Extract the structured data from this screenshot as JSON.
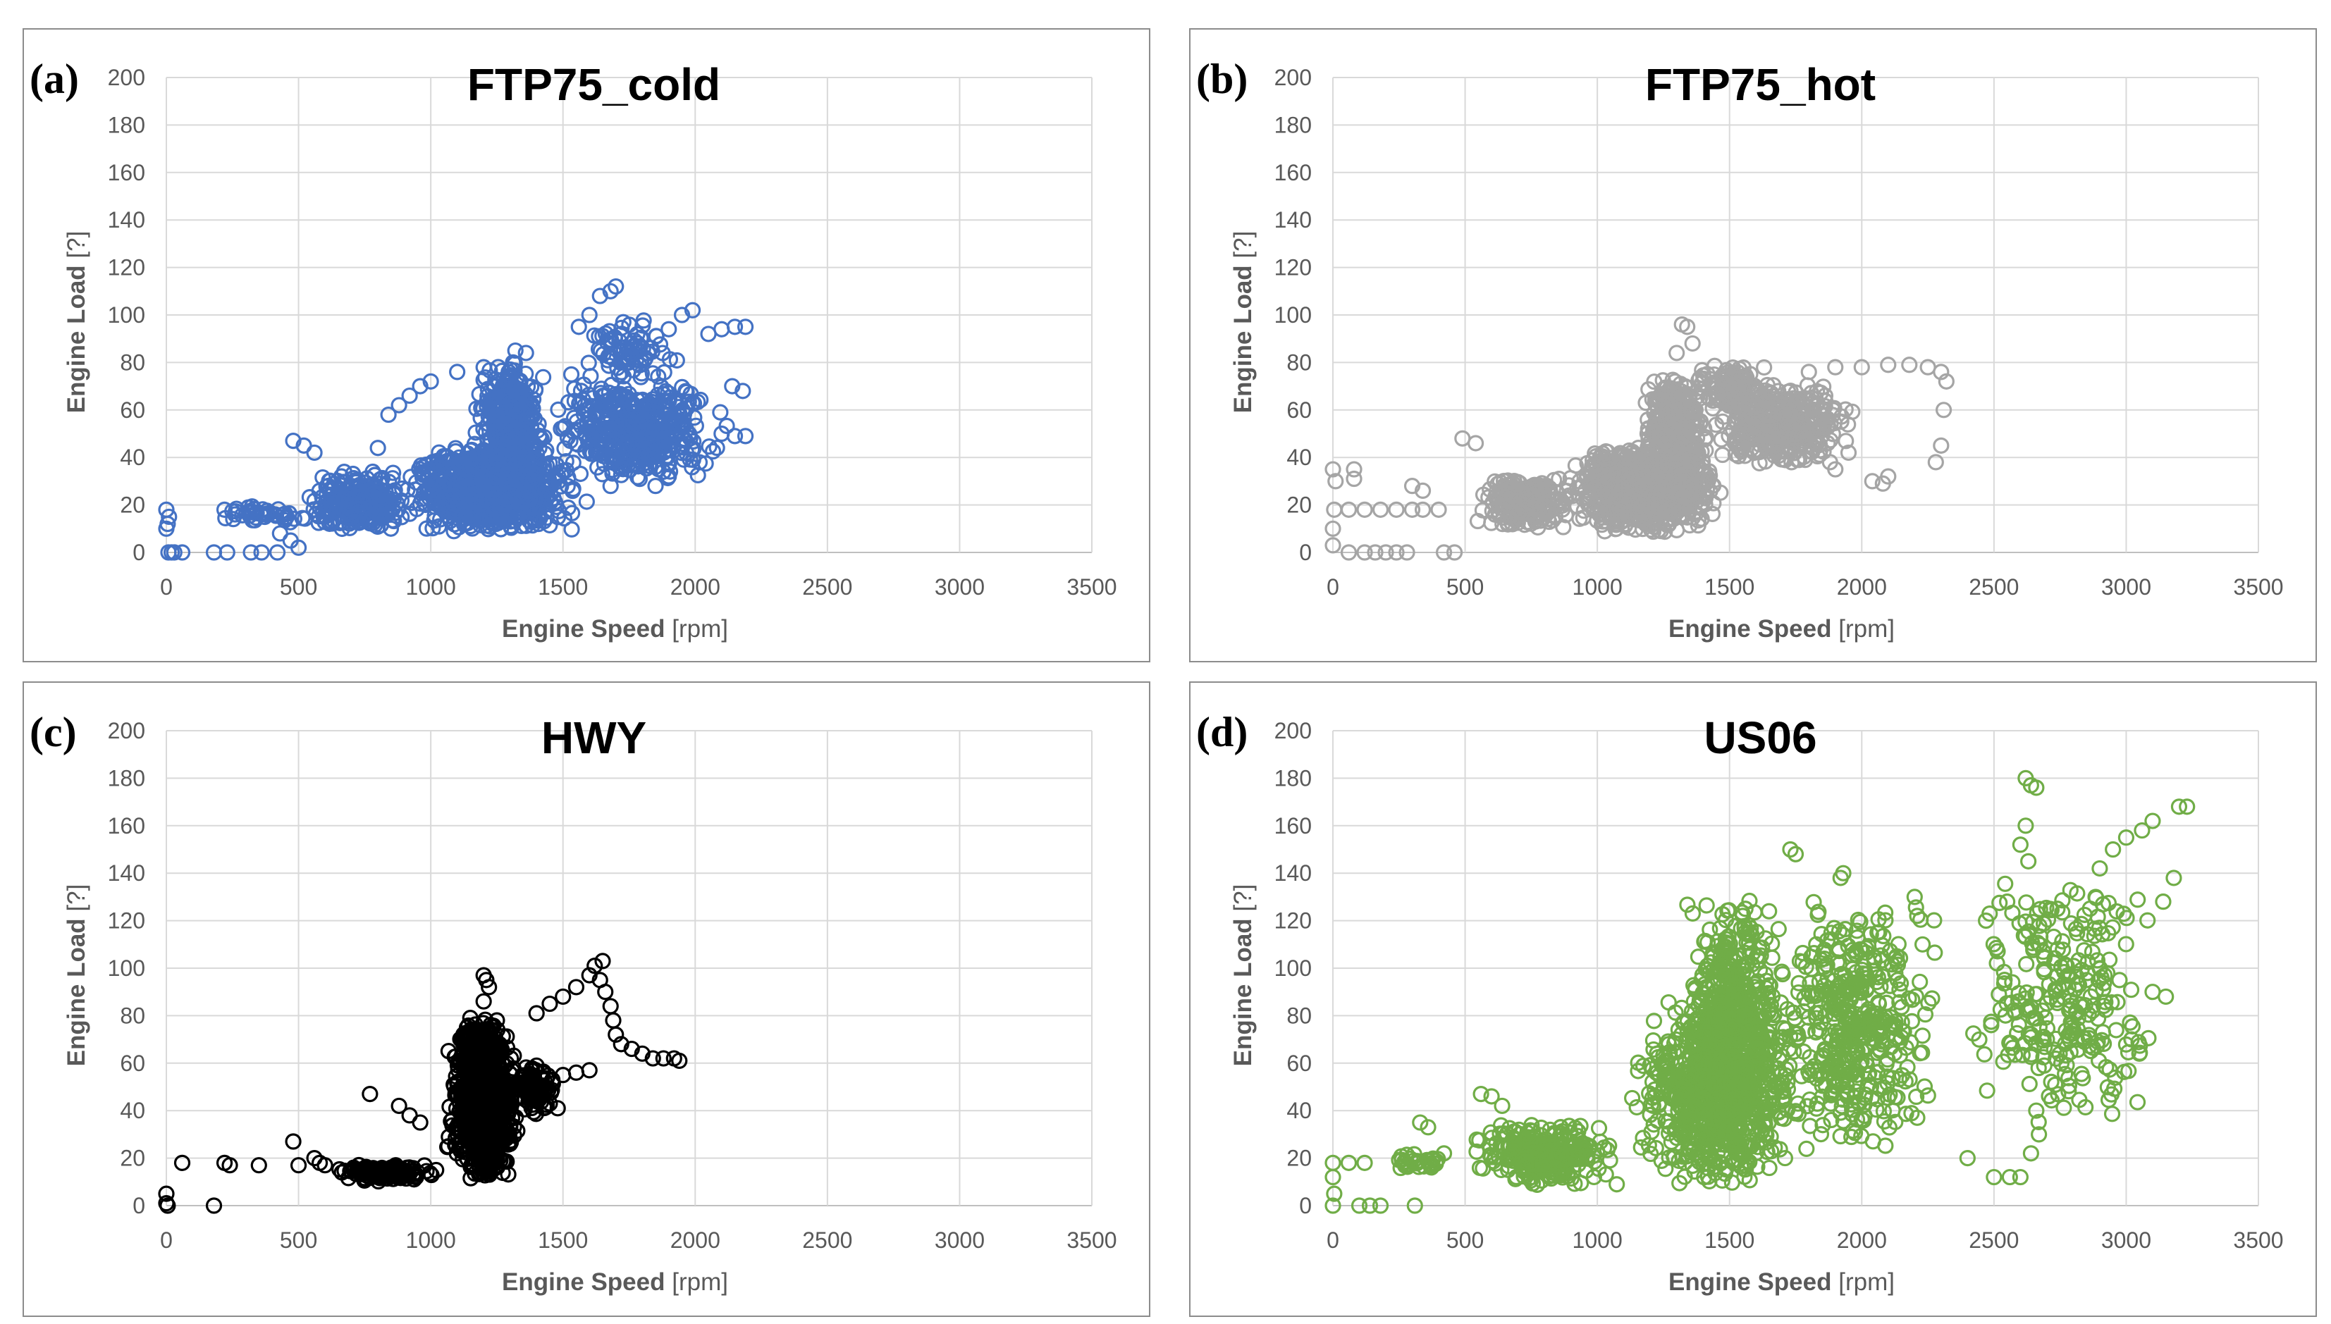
{
  "chart_data": [
    {
      "type": "scatter",
      "panel_label": "(a)",
      "title": "FTP75_cold",
      "xlabel": "Engine Speed",
      "xlabel_unit": "[rpm]",
      "ylabel": "Engine Load",
      "ylabel_unit": "[?]",
      "xlim": [
        0,
        3500
      ],
      "ylim": [
        0,
        200
      ],
      "xticks": [
        0,
        500,
        1000,
        1500,
        2000,
        2500,
        3000,
        3500
      ],
      "yticks": [
        0,
        20,
        40,
        60,
        80,
        100,
        120,
        140,
        160,
        180,
        200
      ],
      "grid": true,
      "color": "#4472c4",
      "clusters": [
        {
          "x": [
            850,
            1600
          ],
          "y": [
            8,
            45
          ],
          "n": 900
        },
        {
          "x": [
            1150,
            1450
          ],
          "y": [
            20,
            82
          ],
          "n": 500
        },
        {
          "x": [
            1400,
            2150
          ],
          "y": [
            30,
            72
          ],
          "n": 450
        },
        {
          "x": [
            500,
            950
          ],
          "y": [
            8,
            35
          ],
          "n": 250
        },
        {
          "x": [
            150,
            550
          ],
          "y": [
            12,
            20
          ],
          "n": 40
        },
        {
          "x": [
            1500,
            2000
          ],
          "y": [
            70,
            100
          ],
          "n": 80
        }
      ],
      "points": [
        {
          "x": 0,
          "y": 18
        },
        {
          "x": 10,
          "y": 15
        },
        {
          "x": 5,
          "y": 12
        },
        {
          "x": 0,
          "y": 10
        },
        {
          "x": 8,
          "y": 0
        },
        {
          "x": 30,
          "y": 0
        },
        {
          "x": 60,
          "y": 0
        },
        {
          "x": 20,
          "y": 0
        },
        {
          "x": 180,
          "y": 0
        },
        {
          "x": 230,
          "y": 0
        },
        {
          "x": 320,
          "y": 0
        },
        {
          "x": 360,
          "y": 0
        },
        {
          "x": 420,
          "y": 0
        },
        {
          "x": 220,
          "y": 18
        },
        {
          "x": 260,
          "y": 16
        },
        {
          "x": 480,
          "y": 47
        },
        {
          "x": 520,
          "y": 45
        },
        {
          "x": 560,
          "y": 42
        },
        {
          "x": 430,
          "y": 8
        },
        {
          "x": 470,
          "y": 5
        },
        {
          "x": 500,
          "y": 2
        },
        {
          "x": 800,
          "y": 44
        },
        {
          "x": 840,
          "y": 58
        },
        {
          "x": 880,
          "y": 62
        },
        {
          "x": 920,
          "y": 66
        },
        {
          "x": 960,
          "y": 70
        },
        {
          "x": 1000,
          "y": 72
        },
        {
          "x": 1100,
          "y": 76
        },
        {
          "x": 1200,
          "y": 78
        },
        {
          "x": 1320,
          "y": 85
        },
        {
          "x": 1360,
          "y": 84
        },
        {
          "x": 1560,
          "y": 95
        },
        {
          "x": 1600,
          "y": 100
        },
        {
          "x": 1640,
          "y": 108
        },
        {
          "x": 1700,
          "y": 112
        },
        {
          "x": 1680,
          "y": 110
        },
        {
          "x": 1900,
          "y": 94
        },
        {
          "x": 1950,
          "y": 100
        },
        {
          "x": 1990,
          "y": 102
        },
        {
          "x": 2050,
          "y": 92
        },
        {
          "x": 2100,
          "y": 94
        },
        {
          "x": 2150,
          "y": 95
        },
        {
          "x": 2190,
          "y": 95
        },
        {
          "x": 2140,
          "y": 70
        },
        {
          "x": 2180,
          "y": 68
        },
        {
          "x": 2100,
          "y": 50
        },
        {
          "x": 2150,
          "y": 49
        },
        {
          "x": 2190,
          "y": 49
        },
        {
          "x": 1900,
          "y": 32
        },
        {
          "x": 1880,
          "y": 34
        },
        {
          "x": 1850,
          "y": 28
        },
        {
          "x": 1700,
          "y": 40
        },
        {
          "x": 1680,
          "y": 28
        }
      ]
    },
    {
      "type": "scatter",
      "panel_label": "(b)",
      "title": "FTP75_hot",
      "xlabel": "Engine Speed",
      "xlabel_unit": "[rpm]",
      "ylabel": "Engine Load",
      "ylabel_unit": "[?]",
      "xlim": [
        0,
        3500
      ],
      "ylim": [
        0,
        200
      ],
      "xticks": [
        0,
        500,
        1000,
        1500,
        2000,
        2500,
        3000,
        3500
      ],
      "yticks": [
        0,
        20,
        40,
        60,
        80,
        100,
        120,
        140,
        160,
        180,
        200
      ],
      "grid": true,
      "color": "#a5a5a5",
      "clusters": [
        {
          "x": [
            850,
            1500
          ],
          "y": [
            8,
            45
          ],
          "n": 850
        },
        {
          "x": [
            1150,
            1450
          ],
          "y": [
            20,
            75
          ],
          "n": 400
        },
        {
          "x": [
            1400,
            2000
          ],
          "y": [
            35,
            72
          ],
          "n": 380
        },
        {
          "x": [
            500,
            950
          ],
          "y": [
            10,
            32
          ],
          "n": 220
        },
        {
          "x": [
            1300,
            1700
          ],
          "y": [
            60,
            80
          ],
          "n": 120
        }
      ],
      "points": [
        {
          "x": 0,
          "y": 35
        },
        {
          "x": 10,
          "y": 30
        },
        {
          "x": 5,
          "y": 18
        },
        {
          "x": 0,
          "y": 10
        },
        {
          "x": 0,
          "y": 3
        },
        {
          "x": 80,
          "y": 35
        },
        {
          "x": 80,
          "y": 31
        },
        {
          "x": 60,
          "y": 18
        },
        {
          "x": 120,
          "y": 18
        },
        {
          "x": 180,
          "y": 18
        },
        {
          "x": 240,
          "y": 18
        },
        {
          "x": 300,
          "y": 18
        },
        {
          "x": 340,
          "y": 18
        },
        {
          "x": 400,
          "y": 18
        },
        {
          "x": 60,
          "y": 0
        },
        {
          "x": 120,
          "y": 0
        },
        {
          "x": 160,
          "y": 0
        },
        {
          "x": 200,
          "y": 0
        },
        {
          "x": 240,
          "y": 0
        },
        {
          "x": 280,
          "y": 0
        },
        {
          "x": 420,
          "y": 0
        },
        {
          "x": 460,
          "y": 0
        },
        {
          "x": 490,
          "y": 48
        },
        {
          "x": 540,
          "y": 46
        },
        {
          "x": 300,
          "y": 28
        },
        {
          "x": 340,
          "y": 26
        },
        {
          "x": 1320,
          "y": 96
        },
        {
          "x": 1340,
          "y": 95
        },
        {
          "x": 1360,
          "y": 88
        },
        {
          "x": 1300,
          "y": 84
        },
        {
          "x": 1800,
          "y": 76
        },
        {
          "x": 1900,
          "y": 78
        },
        {
          "x": 2000,
          "y": 78
        },
        {
          "x": 2100,
          "y": 79
        },
        {
          "x": 2180,
          "y": 79
        },
        {
          "x": 2250,
          "y": 78
        },
        {
          "x": 2300,
          "y": 76
        },
        {
          "x": 2320,
          "y": 72
        },
        {
          "x": 2310,
          "y": 60
        },
        {
          "x": 2300,
          "y": 45
        },
        {
          "x": 2280,
          "y": 38
        },
        {
          "x": 2100,
          "y": 32
        },
        {
          "x": 2080,
          "y": 29
        },
        {
          "x": 2040,
          "y": 30
        },
        {
          "x": 1950,
          "y": 42
        },
        {
          "x": 1900,
          "y": 35
        },
        {
          "x": 1880,
          "y": 38
        }
      ]
    },
    {
      "type": "scatter",
      "panel_label": "(c)",
      "title": "HWY",
      "xlabel": "Engine Speed",
      "xlabel_unit": "[rpm]",
      "ylabel": "Engine Load",
      "ylabel_unit": "[?]",
      "xlim": [
        0,
        3500
      ],
      "ylim": [
        0,
        200
      ],
      "xticks": [
        0,
        500,
        1000,
        1500,
        2000,
        2500,
        3000,
        3500
      ],
      "yticks": [
        0,
        20,
        40,
        60,
        80,
        100,
        120,
        140,
        160,
        180,
        200
      ],
      "grid": true,
      "color": "#000000",
      "clusters": [
        {
          "x": [
            1050,
            1350
          ],
          "y": [
            10,
            75
          ],
          "n": 950
        },
        {
          "x": [
            1100,
            1280
          ],
          "y": [
            40,
            80
          ],
          "n": 350
        },
        {
          "x": [
            600,
            1050
          ],
          "y": [
            10,
            18
          ],
          "n": 120
        },
        {
          "x": [
            1300,
            1480
          ],
          "y": [
            38,
            60
          ],
          "n": 90
        }
      ],
      "points": [
        {
          "x": 0,
          "y": 5
        },
        {
          "x": 0,
          "y": 1
        },
        {
          "x": 5,
          "y": 0
        },
        {
          "x": 60,
          "y": 18
        },
        {
          "x": 180,
          "y": 0
        },
        {
          "x": 220,
          "y": 18
        },
        {
          "x": 240,
          "y": 17
        },
        {
          "x": 350,
          "y": 17
        },
        {
          "x": 480,
          "y": 27
        },
        {
          "x": 500,
          "y": 17
        },
        {
          "x": 560,
          "y": 20
        },
        {
          "x": 580,
          "y": 18
        },
        {
          "x": 600,
          "y": 17
        },
        {
          "x": 770,
          "y": 47
        },
        {
          "x": 880,
          "y": 42
        },
        {
          "x": 920,
          "y": 38
        },
        {
          "x": 960,
          "y": 35
        },
        {
          "x": 1200,
          "y": 97
        },
        {
          "x": 1210,
          "y": 95
        },
        {
          "x": 1220,
          "y": 92
        },
        {
          "x": 1200,
          "y": 86
        },
        {
          "x": 1250,
          "y": 78
        },
        {
          "x": 1400,
          "y": 81
        },
        {
          "x": 1450,
          "y": 85
        },
        {
          "x": 1500,
          "y": 88
        },
        {
          "x": 1550,
          "y": 92
        },
        {
          "x": 1600,
          "y": 97
        },
        {
          "x": 1620,
          "y": 101
        },
        {
          "x": 1650,
          "y": 103
        },
        {
          "x": 1640,
          "y": 95
        },
        {
          "x": 1660,
          "y": 90
        },
        {
          "x": 1680,
          "y": 84
        },
        {
          "x": 1690,
          "y": 78
        },
        {
          "x": 1700,
          "y": 72
        },
        {
          "x": 1720,
          "y": 68
        },
        {
          "x": 1760,
          "y": 66
        },
        {
          "x": 1800,
          "y": 64
        },
        {
          "x": 1840,
          "y": 62
        },
        {
          "x": 1880,
          "y": 62
        },
        {
          "x": 1920,
          "y": 62
        },
        {
          "x": 1940,
          "y": 61
        },
        {
          "x": 1600,
          "y": 57
        },
        {
          "x": 1550,
          "y": 56
        },
        {
          "x": 1500,
          "y": 55
        },
        {
          "x": 1450,
          "y": 43
        },
        {
          "x": 1480,
          "y": 41
        }
      ]
    },
    {
      "type": "scatter",
      "panel_label": "(d)",
      "title": "US06",
      "xlabel": "Engine Speed",
      "xlabel_unit": "[rpm]",
      "ylabel": "Engine Load",
      "ylabel_unit": "[?]",
      "xlim": [
        0,
        3500
      ],
      "ylim": [
        0,
        200
      ],
      "xticks": [
        0,
        500,
        1000,
        1500,
        2000,
        2500,
        3000,
        3500
      ],
      "yticks": [
        0,
        20,
        40,
        60,
        80,
        100,
        120,
        140,
        160,
        180,
        200
      ],
      "grid": true,
      "color": "#70ad47",
      "clusters": [
        {
          "x": [
            1100,
            1800
          ],
          "y": [
            8,
            90
          ],
          "n": 900
        },
        {
          "x": [
            1300,
            1750
          ],
          "y": [
            40,
            130
          ],
          "n": 350
        },
        {
          "x": [
            1600,
            2350
          ],
          "y": [
            20,
            130
          ],
          "n": 450
        },
        {
          "x": [
            500,
            1100
          ],
          "y": [
            8,
            35
          ],
          "n": 300
        },
        {
          "x": [
            2300,
            3200
          ],
          "y": [
            30,
            140
          ],
          "n": 260
        },
        {
          "x": [
            200,
            500
          ],
          "y": [
            14,
            22
          ],
          "n": 30
        }
      ],
      "points": [
        {
          "x": 0,
          "y": 18
        },
        {
          "x": 0,
          "y": 12
        },
        {
          "x": 5,
          "y": 5
        },
        {
          "x": 0,
          "y": 0
        },
        {
          "x": 60,
          "y": 18
        },
        {
          "x": 120,
          "y": 18
        },
        {
          "x": 100,
          "y": 0
        },
        {
          "x": 140,
          "y": 0
        },
        {
          "x": 180,
          "y": 0
        },
        {
          "x": 310,
          "y": 0
        },
        {
          "x": 330,
          "y": 35
        },
        {
          "x": 360,
          "y": 33
        },
        {
          "x": 420,
          "y": 22
        },
        {
          "x": 560,
          "y": 47
        },
        {
          "x": 600,
          "y": 46
        },
        {
          "x": 640,
          "y": 42
        },
        {
          "x": 2620,
          "y": 180
        },
        {
          "x": 2640,
          "y": 177
        },
        {
          "x": 2660,
          "y": 176
        },
        {
          "x": 2620,
          "y": 160
        },
        {
          "x": 2600,
          "y": 152
        },
        {
          "x": 2630,
          "y": 145
        },
        {
          "x": 3200,
          "y": 168
        },
        {
          "x": 3230,
          "y": 168
        },
        {
          "x": 3100,
          "y": 162
        },
        {
          "x": 3060,
          "y": 158
        },
        {
          "x": 3000,
          "y": 155
        },
        {
          "x": 2950,
          "y": 150
        },
        {
          "x": 2900,
          "y": 142
        },
        {
          "x": 3180,
          "y": 138
        },
        {
          "x": 3140,
          "y": 128
        },
        {
          "x": 3100,
          "y": 90
        },
        {
          "x": 3150,
          "y": 88
        },
        {
          "x": 3050,
          "y": 64
        },
        {
          "x": 3020,
          "y": 70
        },
        {
          "x": 2900,
          "y": 100
        },
        {
          "x": 2850,
          "y": 95
        },
        {
          "x": 2700,
          "y": 70
        },
        {
          "x": 2660,
          "y": 40
        },
        {
          "x": 2670,
          "y": 30
        },
        {
          "x": 2640,
          "y": 22
        },
        {
          "x": 2600,
          "y": 12
        },
        {
          "x": 2560,
          "y": 12
        },
        {
          "x": 2500,
          "y": 12
        },
        {
          "x": 2400,
          "y": 20
        },
        {
          "x": 2470,
          "y": 120
        },
        {
          "x": 2550,
          "y": 128
        },
        {
          "x": 2740,
          "y": 125
        },
        {
          "x": 1730,
          "y": 150
        },
        {
          "x": 1750,
          "y": 148
        },
        {
          "x": 1930,
          "y": 140
        },
        {
          "x": 1920,
          "y": 138
        },
        {
          "x": 1560,
          "y": 125
        },
        {
          "x": 1550,
          "y": 122
        },
        {
          "x": 2200,
          "y": 130
        },
        {
          "x": 2210,
          "y": 122
        },
        {
          "x": 2230,
          "y": 110
        }
      ]
    }
  ]
}
